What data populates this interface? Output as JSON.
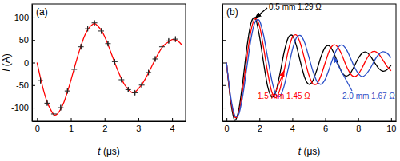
{
  "chart_data": [
    {
      "type": "line",
      "title": "(a)",
      "xlabel": "t (μs)",
      "ylabel": "I (A)",
      "xlim": [
        -0.15,
        4.4
      ],
      "ylim": [
        -130,
        130
      ],
      "xticks": [
        0,
        1,
        2,
        3,
        4
      ],
      "yticks": [
        -100,
        -50,
        0,
        50,
        100
      ],
      "grid": false,
      "series": [
        {
          "type": "line",
          "color": "#ff0000",
          "line_style": "solid",
          "x": [
            0,
            0.1,
            0.2,
            0.3,
            0.4,
            0.5,
            0.6,
            0.7,
            0.8,
            0.9,
            1.0,
            1.1,
            1.2,
            1.3,
            1.4,
            1.5,
            1.6,
            1.7,
            1.8,
            1.9,
            2.0,
            2.1,
            2.2,
            2.3,
            2.4,
            2.5,
            2.6,
            2.7,
            2.8,
            2.9,
            3.0,
            3.1,
            3.2,
            3.3,
            3.4,
            3.5,
            3.6,
            3.7,
            3.8,
            3.9,
            4.0,
            4.1,
            4.2,
            4.3
          ],
          "values": [
            0,
            -34,
            -64,
            -88,
            -104,
            -116,
            -114,
            -103,
            -87,
            -65,
            -40,
            -13,
            13,
            37,
            58,
            73,
            82,
            87,
            81,
            72,
            58,
            40,
            20,
            0,
            -19,
            -36,
            -50,
            -59,
            -66,
            -66,
            -58,
            -49,
            -37,
            -23,
            -8,
            7,
            21,
            33,
            41,
            46,
            51,
            50,
            46,
            38
          ]
        },
        {
          "type": "scatter",
          "color": "#222222",
          "marker": "plus",
          "x": [
            0.1,
            0.3,
            0.5,
            0.7,
            0.9,
            1.1,
            1.3,
            1.5,
            1.7,
            1.9,
            2.1,
            2.3,
            2.5,
            2.7,
            2.9,
            3.1,
            3.3,
            3.5,
            3.7,
            3.9,
            4.1
          ],
          "values": [
            -40,
            -90,
            -114,
            -100,
            -63,
            -15,
            35,
            75,
            88,
            70,
            42,
            2,
            -38,
            -60,
            -67,
            -50,
            -22,
            8,
            35,
            48,
            52
          ],
          "errors": [
            6,
            5,
            5,
            6,
            5,
            5,
            6,
            5,
            5,
            6,
            5,
            5,
            5,
            6,
            5,
            5,
            5,
            6,
            5,
            5,
            6
          ]
        }
      ]
    },
    {
      "type": "line",
      "title": "(b)",
      "xlabel": "t (μs)",
      "xlim": [
        -0.25,
        10.3
      ],
      "ylim": [
        -130,
        130
      ],
      "xticks": [
        0,
        2,
        4,
        6,
        8,
        10
      ],
      "yticks": [
        -100,
        -50,
        0,
        50,
        100
      ],
      "grid": false,
      "tick_labels": "x",
      "x": [
        0,
        0.25,
        0.5,
        0.75,
        1.0,
        1.25,
        1.5,
        1.75,
        2.0,
        2.25,
        2.5,
        2.75,
        3.0,
        3.25,
        3.5,
        3.75,
        4.0,
        4.25,
        4.5,
        4.75,
        5.0,
        5.25,
        5.5,
        5.75,
        6.0,
        6.25,
        6.5,
        6.75,
        7.0,
        7.25,
        7.5,
        7.75,
        8.0,
        8.25,
        8.5,
        8.75,
        9.0,
        9.25,
        9.5,
        9.75,
        10.0
      ],
      "series": [
        {
          "name": "0.5 mm 1.29 Ω",
          "color": "#000000",
          "line_style": "solid",
          "values": [
            0,
            -85,
            -128,
            -104,
            -39,
            37,
            89,
            99,
            59,
            0,
            -53,
            -77,
            -65,
            -24,
            23,
            55,
            60,
            37,
            0,
            -33,
            -48,
            -40,
            -15,
            14,
            34,
            37,
            23,
            0,
            -21,
            -30,
            -25,
            -9,
            9,
            21,
            23,
            14,
            0,
            -13,
            -19,
            -16,
            -6
          ]
        },
        {
          "name": "1.5 mm 1.45 Ω",
          "color": "#ff0000",
          "line_style": "solid",
          "values": [
            0,
            -80,
            -121,
            -111,
            -57,
            14,
            73,
            98,
            82,
            34,
            -22,
            -65,
            -78,
            -59,
            -18,
            26,
            56,
            61,
            41,
            7,
            -27,
            -47,
            -47,
            -28,
            0,
            26,
            39,
            35,
            18,
            -5,
            -23,
            -31,
            -26,
            -11,
            7,
            21,
            25,
            19,
            6,
            -8,
            -18
          ]
        },
        {
          "name": "2.0 mm 1.67 Ω",
          "color": "#2a4fc8",
          "line_style": "solid",
          "values": [
            0,
            -75,
            -117,
            -114,
            -71,
            -7,
            55,
            91,
            93,
            61,
            11,
            -39,
            -71,
            -75,
            -52,
            -13,
            28,
            55,
            60,
            44,
            13,
            -19,
            -42,
            -48,
            -37,
            -13,
            13,
            32,
            39,
            31,
            13,
            -8,
            -24,
            -31,
            -25,
            -12,
            5,
            18,
            24,
            21,
            11
          ]
        }
      ]
    }
  ]
}
